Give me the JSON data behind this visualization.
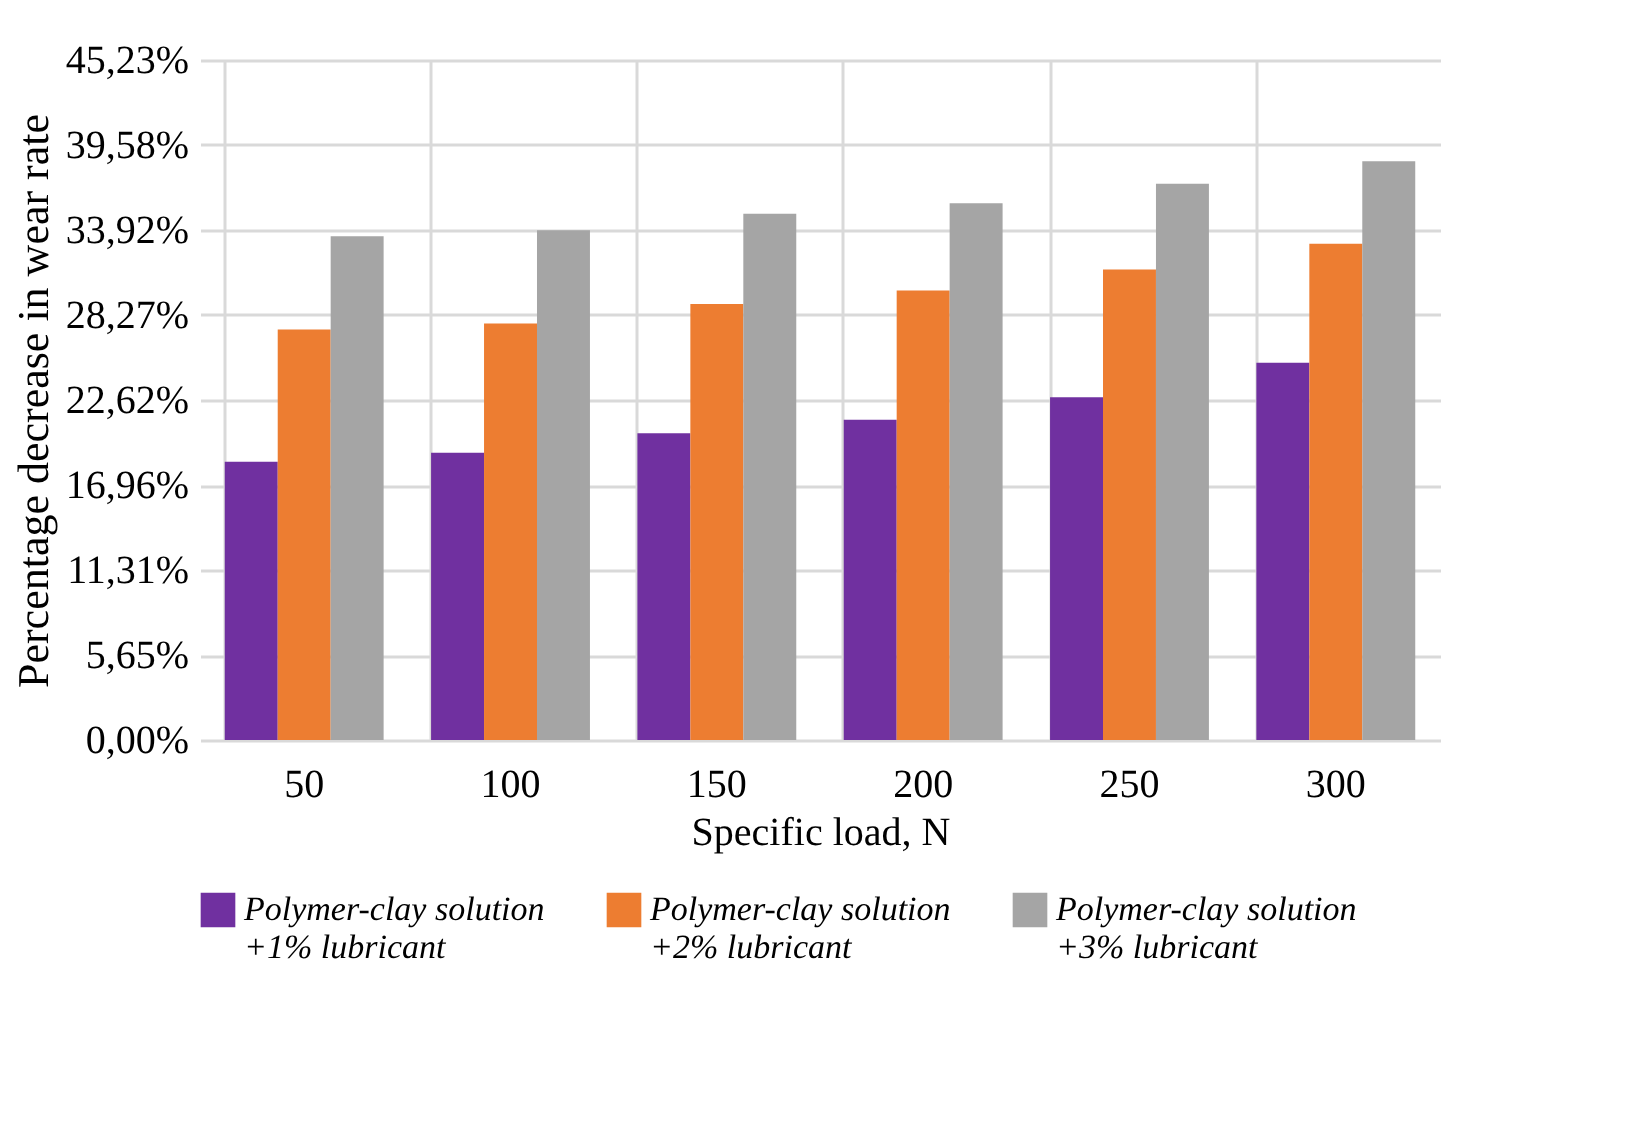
{
  "chart_data": {
    "type": "bar",
    "xlabel": "Specific load, N",
    "ylabel": "Percentage decrease in wear rate",
    "categories": [
      "50",
      "100",
      "150",
      "200",
      "250",
      "300"
    ],
    "series": [
      {
        "name": "Polymer-clay solution +1% lubricant",
        "color": "#7030a0",
        "values": [
          18.5,
          19.1,
          20.4,
          21.3,
          22.8,
          25.1
        ]
      },
      {
        "name": "Polymer-clay solution +2% lubricant",
        "color": "#ed7d31",
        "values": [
          27.3,
          27.7,
          29.0,
          29.9,
          31.3,
          33.0
        ]
      },
      {
        "name": "Polymer-clay solution +3% lubricant",
        "color": "#a5a5a5",
        "values": [
          33.5,
          33.9,
          35.0,
          35.7,
          37.0,
          38.5
        ]
      }
    ],
    "ylim": [
      0,
      45.23
    ],
    "yticks": [
      {
        "value": 0,
        "label": "0,00%"
      },
      {
        "value": 5.65,
        "label": "5,65%"
      },
      {
        "value": 11.31,
        "label": "11,31%"
      },
      {
        "value": 16.96,
        "label": "16,96%"
      },
      {
        "value": 22.62,
        "label": "22,62%"
      },
      {
        "value": 28.27,
        "label": "28,27%"
      },
      {
        "value": 33.92,
        "label": "33,92%"
      },
      {
        "value": 39.58,
        "label": "39,58%"
      },
      {
        "value": 45.23,
        "label": "45,23%"
      }
    ],
    "grid": true,
    "legend": "bottom"
  }
}
